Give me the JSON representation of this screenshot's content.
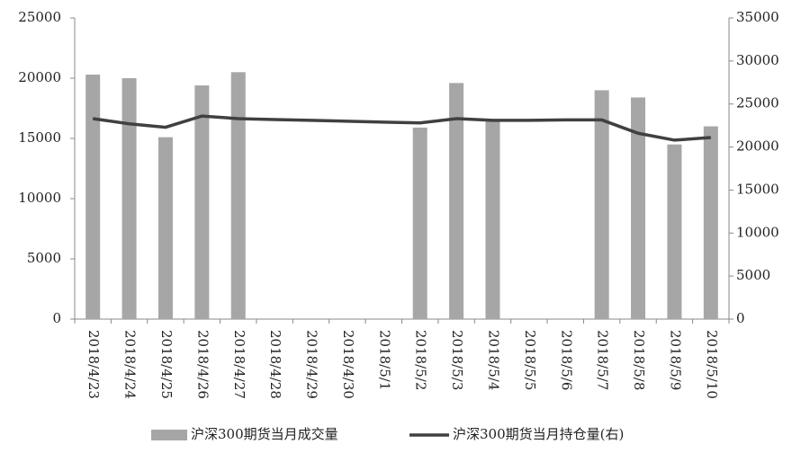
{
  "chart_data": {
    "type": "bar-line",
    "categories": [
      "2018/4/23",
      "2018/4/24",
      "2018/4/25",
      "2018/4/26",
      "2018/4/27",
      "2018/4/28",
      "2018/4/29",
      "2018/4/30",
      "2018/5/1",
      "2018/5/2",
      "2018/5/3",
      "2018/5/4",
      "2018/5/5",
      "2018/5/6",
      "2018/5/7",
      "2018/5/8",
      "2018/5/9",
      "2018/5/10"
    ],
    "series": [
      {
        "name": "沪深300期货当月成交量",
        "color": "#a6a6a6",
        "type": "bar",
        "values": [
          20300,
          20000,
          15100,
          19400,
          20500,
          null,
          null,
          null,
          null,
          15900,
          19600,
          16500,
          null,
          null,
          19000,
          18400,
          14500,
          16000
        ]
      },
      {
        "name": "沪深300期货当月持仓量(右)",
        "color": "#404040",
        "type": "line",
        "axis": "y2",
        "values": [
          23300,
          22700,
          22300,
          23600,
          23300,
          23200,
          23100,
          23000,
          22900,
          22800,
          23300,
          23100,
          23100,
          23150,
          23150,
          21600,
          20800,
          21100
        ]
      }
    ],
    "ylim": [
      0,
      25000
    ],
    "yticks": [
      0,
      5000,
      10000,
      15000,
      20000,
      25000
    ],
    "y2lim": [
      0,
      35000
    ],
    "y2ticks": [
      0,
      5000,
      10000,
      15000,
      20000,
      25000,
      30000,
      35000
    ],
    "grid": false,
    "legend": "bottom"
  }
}
